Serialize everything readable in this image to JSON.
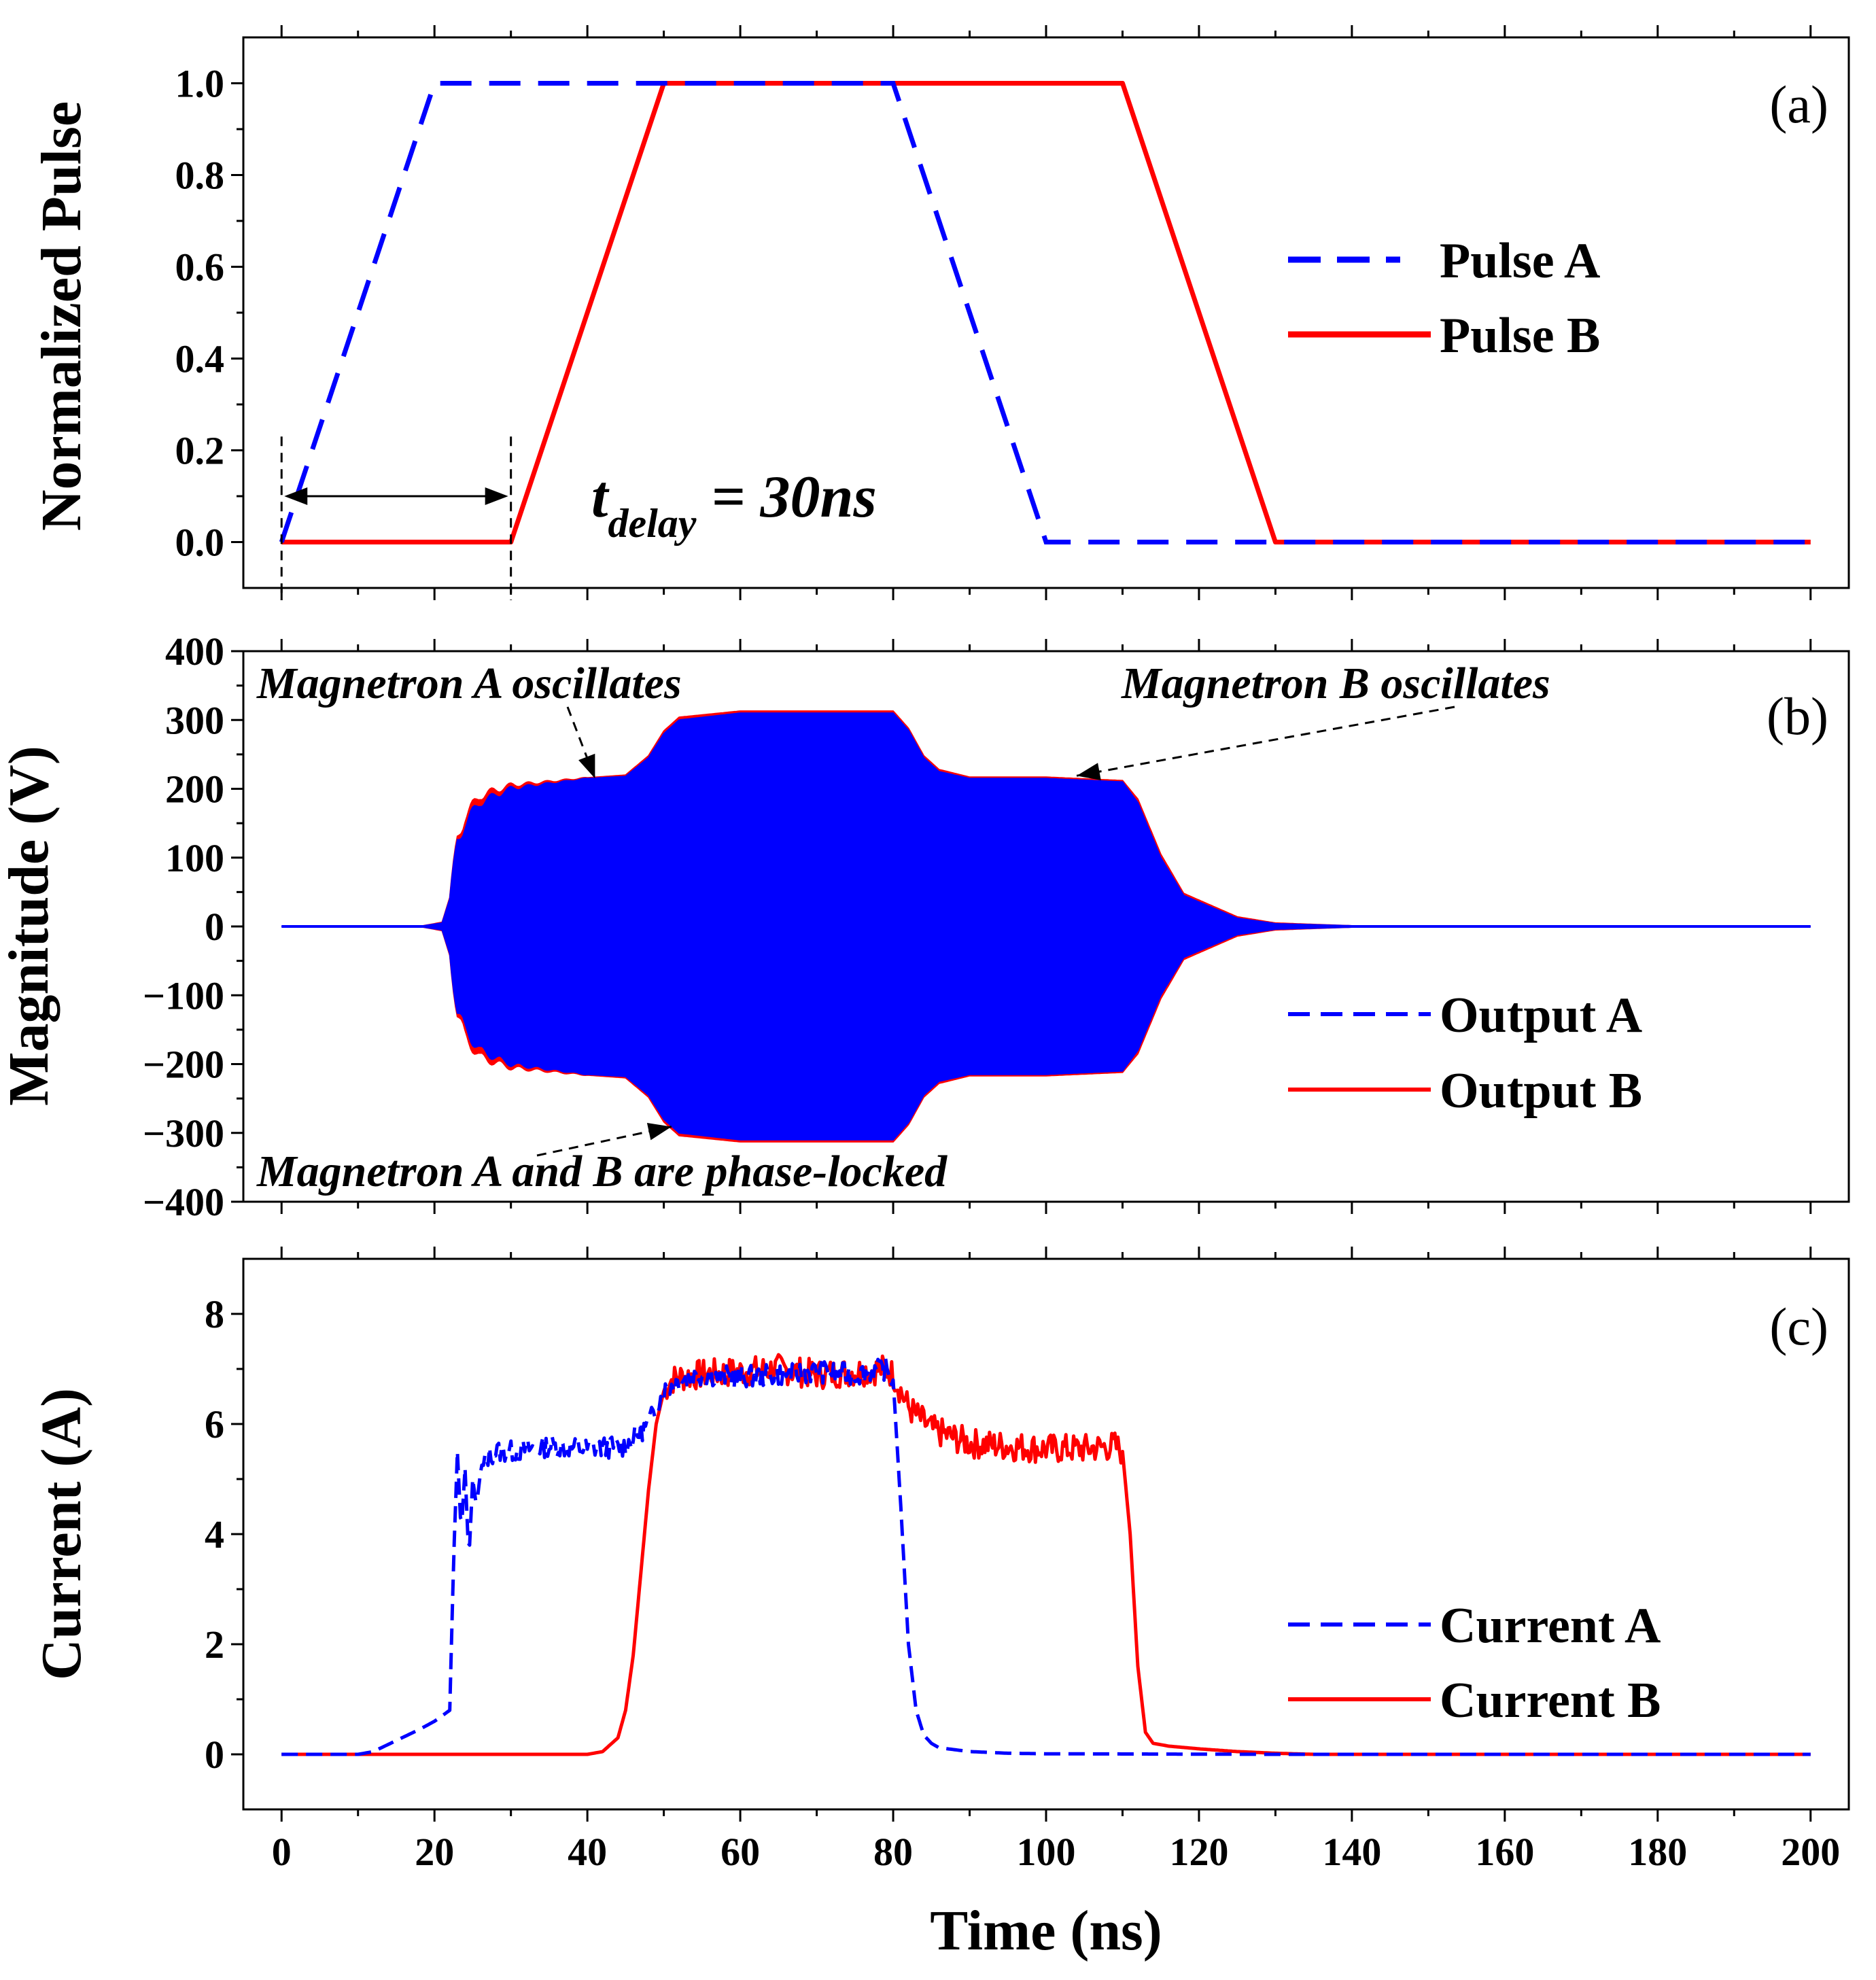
{
  "chart_data": [
    {
      "type": "line",
      "panel_label": "(a)",
      "ylabel": "Normalized Pulse",
      "xlim": [
        -5,
        205
      ],
      "ylim": [
        -0.1,
        1.1
      ],
      "xticks": [
        0,
        20,
        40,
        60,
        80,
        100,
        120,
        140,
        160,
        180,
        200
      ],
      "yticks": [
        0.0,
        0.2,
        0.4,
        0.6,
        0.8,
        1.0
      ],
      "ytick_labels": [
        "0.0",
        "0.2",
        "0.4",
        "0.6",
        "0.8",
        "1.0"
      ],
      "series": [
        {
          "name": "Pulse A",
          "style": "dashed",
          "color": "#0000ff",
          "x": [
            0,
            20,
            80,
            100,
            200
          ],
          "y": [
            0,
            1,
            1,
            0,
            0
          ]
        },
        {
          "name": "Pulse B",
          "style": "solid",
          "color": "#ff0000",
          "x": [
            0,
            30,
            50,
            110,
            130,
            200
          ],
          "y": [
            0,
            0,
            1,
            1,
            0,
            0
          ]
        }
      ],
      "delay_annotation": {
        "t": "t",
        "sub": "delay",
        "rest": " = 30ns",
        "from": 0,
        "to": 30
      }
    },
    {
      "type": "line",
      "panel_label": "(b)",
      "ylabel": "Magnitude (V)",
      "xlim": [
        -5,
        205
      ],
      "ylim": [
        -400,
        400
      ],
      "xticks": [
        0,
        20,
        40,
        60,
        80,
        100,
        120,
        140,
        160,
        180,
        200
      ],
      "yticks": [
        -400,
        -300,
        -200,
        -100,
        0,
        100,
        200,
        300,
        400
      ],
      "ytick_labels": [
        "−400",
        "−300",
        "−200",
        "−100",
        "0",
        "100",
        "200",
        "300",
        "400"
      ],
      "envelope_series": [
        {
          "name": "Output A",
          "style": "dashed",
          "color": "#0000ff",
          "x": [
            0,
            18,
            21,
            22,
            23,
            24,
            26,
            30,
            40,
            45,
            48,
            50,
            52,
            60,
            80,
            82,
            84,
            86,
            90,
            100,
            110,
            112,
            115,
            118,
            125,
            130,
            140,
            200
          ],
          "y": [
            0,
            0,
            5,
            40,
            120,
            150,
            180,
            200,
            215,
            218,
            245,
            280,
            300,
            310,
            310,
            285,
            245,
            225,
            215,
            215,
            210,
            180,
            100,
            45,
            12,
            4,
            1,
            0
          ]
        },
        {
          "name": "Output B",
          "style": "solid",
          "color": "#ff0000",
          "x": [
            0,
            18,
            21,
            22,
            23,
            24,
            26,
            30,
            40,
            45,
            48,
            50,
            52,
            60,
            80,
            82,
            84,
            86,
            90,
            100,
            110,
            112,
            115,
            118,
            125,
            130,
            140,
            200
          ],
          "y": [
            0,
            0,
            6,
            42,
            125,
            160,
            190,
            205,
            216,
            220,
            248,
            284,
            304,
            313,
            313,
            288,
            248,
            228,
            217,
            217,
            212,
            185,
            105,
            48,
            14,
            5,
            1,
            0
          ]
        }
      ],
      "annotations": [
        {
          "text": "Magnetron A oscillates",
          "point": [
            41,
            215
          ]
        },
        {
          "text": "Magnetron B oscillates",
          "point": [
            104,
            215
          ]
        },
        {
          "text": "Magnetron A and B are phase-locked",
          "point": [
            51,
            -285
          ]
        }
      ]
    },
    {
      "type": "line",
      "panel_label": "(c)",
      "ylabel": "Current (A)",
      "xlabel": "Time (ns)",
      "xlim": [
        -5,
        205
      ],
      "ylim": [
        -1,
        9
      ],
      "xticks": [
        0,
        20,
        40,
        60,
        80,
        100,
        120,
        140,
        160,
        180,
        200
      ],
      "xtick_labels": [
        "0",
        "20",
        "40",
        "60",
        "80",
        "100",
        "120",
        "140",
        "160",
        "180",
        "200"
      ],
      "yticks": [
        0,
        2,
        4,
        6,
        8
      ],
      "ytick_labels": [
        "0",
        "2",
        "4",
        "6",
        "8"
      ],
      "series": [
        {
          "name": "Current A",
          "style": "dashed",
          "color": "#0000ff",
          "x": [
            0,
            10,
            12,
            15,
            18,
            20,
            21,
            22,
            22.5,
            23,
            23.5,
            24,
            24.5,
            25,
            25.5,
            26,
            27,
            28,
            30,
            35,
            40,
            45,
            48,
            50,
            52,
            55,
            60,
            65,
            70,
            75,
            79,
            80,
            81,
            82,
            83,
            84,
            85,
            86,
            90,
            95,
            100,
            130,
            200
          ],
          "y": [
            0,
            0,
            0.05,
            0.25,
            0.45,
            0.6,
            0.7,
            0.8,
            3.5,
            5.5,
            4.0,
            5.2,
            3.5,
            5.0,
            4.5,
            5.1,
            5.4,
            5.5,
            5.5,
            5.6,
            5.55,
            5.6,
            6.0,
            6.6,
            6.8,
            6.9,
            6.85,
            6.9,
            6.95,
            6.9,
            7.0,
            6.8,
            4.5,
            2.0,
            0.8,
            0.35,
            0.2,
            0.12,
            0.05,
            0.02,
            0.01,
            0,
            0
          ]
        },
        {
          "name": "Current B",
          "style": "solid",
          "color": "#ff0000",
          "x": [
            0,
            40,
            42,
            44,
            45,
            46,
            47,
            48,
            49,
            50,
            51,
            52,
            55,
            60,
            65,
            70,
            75,
            79,
            80,
            82,
            85,
            90,
            95,
            100,
            105,
            109,
            110,
            111,
            112,
            113,
            114,
            116,
            120,
            125,
            130,
            135,
            200
          ],
          "y": [
            0,
            0,
            0.05,
            0.3,
            0.8,
            1.8,
            3.3,
            4.8,
            6.0,
            6.6,
            6.8,
            6.85,
            6.9,
            6.95,
            7.0,
            6.9,
            6.95,
            7.0,
            6.9,
            6.3,
            5.9,
            5.65,
            5.6,
            5.55,
            5.55,
            5.6,
            5.5,
            4.0,
            1.6,
            0.4,
            0.2,
            0.15,
            0.1,
            0.05,
            0.02,
            0,
            0
          ]
        }
      ]
    }
  ]
}
